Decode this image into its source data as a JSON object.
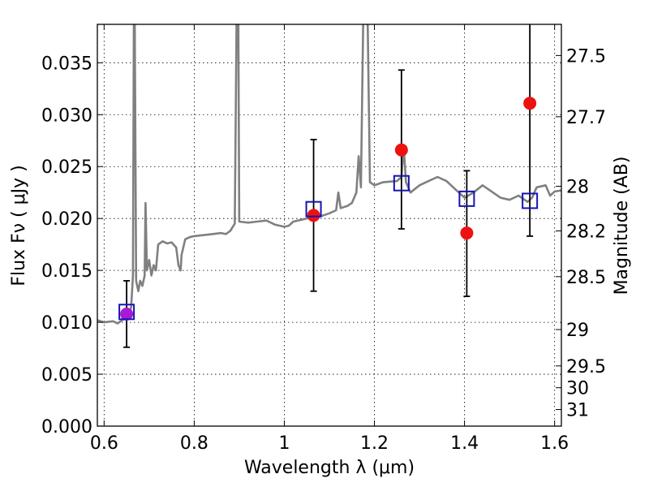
{
  "chart_data": {
    "type": "scatter",
    "title": "",
    "xlabel": "Wavelength  λ (μm)",
    "ylabel": "Flux  Fν  ( μJy )",
    "y2label": "Magnitude (AB)",
    "xlim": [
      0.585,
      1.615
    ],
    "ylim": [
      0.0,
      0.0387
    ],
    "grid": true,
    "x_ticks": [
      0.6,
      0.8,
      1.0,
      1.2,
      1.4,
      1.6
    ],
    "x_tick_labels": [
      "0.6",
      "0.8",
      "1",
      "1.2",
      "1.4",
      "1.6"
    ],
    "y_ticks": [
      0.0,
      0.005,
      0.01,
      0.015,
      0.02,
      0.025,
      0.03,
      0.035
    ],
    "y_tick_labels": [
      "0.000",
      "0.005",
      "0.010",
      "0.015",
      "0.020",
      "0.025",
      "0.030",
      "0.035"
    ],
    "mag_ticks": [
      {
        "label": "27.5",
        "flux": 0.0357
      },
      {
        "label": "27.7",
        "flux": 0.0298
      },
      {
        "label": "28",
        "flux": 0.0231
      },
      {
        "label": "28.2",
        "flux": 0.0188
      },
      {
        "label": "28.5",
        "flux": 0.0144
      },
      {
        "label": "29",
        "flux": 0.0093
      },
      {
        "label": "29.5",
        "flux": 0.0058
      },
      {
        "label": "30",
        "flux": 0.0037
      },
      {
        "label": "31",
        "flux": 0.0016
      }
    ],
    "series": [
      {
        "type": "line",
        "color": "#808080",
        "points": [
          [
            0.585,
            0.0102
          ],
          [
            0.6,
            0.01
          ],
          [
            0.62,
            0.0101
          ],
          [
            0.63,
            0.0099
          ],
          [
            0.64,
            0.0102
          ],
          [
            0.65,
            0.0104
          ],
          [
            0.655,
            0.0106
          ],
          [
            0.66,
            0.0115
          ],
          [
            0.664,
            0.0145
          ],
          [
            0.666,
            0.039
          ],
          [
            0.668,
            0.039
          ],
          [
            0.671,
            0.014
          ],
          [
            0.676,
            0.013
          ],
          [
            0.68,
            0.014
          ],
          [
            0.685,
            0.0135
          ],
          [
            0.69,
            0.0145
          ],
          [
            0.692,
            0.0215
          ],
          [
            0.695,
            0.015
          ],
          [
            0.7,
            0.016
          ],
          [
            0.705,
            0.0145
          ],
          [
            0.71,
            0.0155
          ],
          [
            0.715,
            0.015
          ],
          [
            0.72,
            0.0175
          ],
          [
            0.73,
            0.0178
          ],
          [
            0.74,
            0.0176
          ],
          [
            0.75,
            0.0177
          ],
          [
            0.76,
            0.0172
          ],
          [
            0.765,
            0.0155
          ],
          [
            0.77,
            0.015
          ],
          [
            0.772,
            0.0165
          ],
          [
            0.78,
            0.018
          ],
          [
            0.79,
            0.0182
          ],
          [
            0.8,
            0.0183
          ],
          [
            0.82,
            0.0184
          ],
          [
            0.84,
            0.0185
          ],
          [
            0.86,
            0.0186
          ],
          [
            0.87,
            0.0185
          ],
          [
            0.88,
            0.0188
          ],
          [
            0.89,
            0.0195
          ],
          [
            0.894,
            0.039
          ],
          [
            0.898,
            0.039
          ],
          [
            0.9,
            0.0197
          ],
          [
            0.92,
            0.0196
          ],
          [
            0.94,
            0.0197
          ],
          [
            0.96,
            0.0198
          ],
          [
            0.98,
            0.0194
          ],
          [
            1.0,
            0.0192
          ],
          [
            1.01,
            0.0193
          ],
          [
            1.02,
            0.0197
          ],
          [
            1.04,
            0.0199
          ],
          [
            1.06,
            0.0201
          ],
          [
            1.08,
            0.0202
          ],
          [
            1.1,
            0.0205
          ],
          [
            1.115,
            0.0208
          ],
          [
            1.12,
            0.0225
          ],
          [
            1.125,
            0.021
          ],
          [
            1.14,
            0.0212
          ],
          [
            1.15,
            0.0215
          ],
          [
            1.16,
            0.0225
          ],
          [
            1.165,
            0.026
          ],
          [
            1.17,
            0.023
          ],
          [
            1.175,
            0.039
          ],
          [
            1.185,
            0.039
          ],
          [
            1.19,
            0.0235
          ],
          [
            1.2,
            0.0232
          ],
          [
            1.22,
            0.0235
          ],
          [
            1.25,
            0.0236
          ],
          [
            1.26,
            0.024
          ],
          [
            1.265,
            0.027
          ],
          [
            1.27,
            0.0235
          ],
          [
            1.28,
            0.0225
          ],
          [
            1.3,
            0.0232
          ],
          [
            1.32,
            0.0236
          ],
          [
            1.34,
            0.024
          ],
          [
            1.36,
            0.0236
          ],
          [
            1.38,
            0.0228
          ],
          [
            1.4,
            0.022
          ],
          [
            1.42,
            0.0225
          ],
          [
            1.44,
            0.0232
          ],
          [
            1.46,
            0.0226
          ],
          [
            1.48,
            0.022
          ],
          [
            1.5,
            0.0218
          ],
          [
            1.52,
            0.0222
          ],
          [
            1.54,
            0.0216
          ],
          [
            1.55,
            0.022
          ],
          [
            1.56,
            0.023
          ],
          [
            1.58,
            0.0232
          ],
          [
            1.59,
            0.0222
          ],
          [
            1.6,
            0.0226
          ],
          [
            1.615,
            0.0227
          ]
        ]
      },
      {
        "type": "scatter",
        "marker": "square",
        "color": "#1414b4",
        "points": [
          [
            0.65,
            0.011
          ],
          [
            1.065,
            0.0209
          ],
          [
            1.26,
            0.0234
          ],
          [
            1.405,
            0.0219
          ],
          [
            1.545,
            0.0217
          ]
        ]
      },
      {
        "type": "errorbar",
        "marker": "circle",
        "color": "#ee1111",
        "points": [
          {
            "x": 0.65,
            "y": 0.0108,
            "ylow": 0.0076,
            "yhigh": 0.014,
            "color": "#aa1ad6"
          },
          {
            "x": 1.065,
            "y": 0.0203,
            "ylow": 0.013,
            "yhigh": 0.0276
          },
          {
            "x": 1.26,
            "y": 0.0266,
            "ylow": 0.019,
            "yhigh": 0.0343
          },
          {
            "x": 1.405,
            "y": 0.0186,
            "ylow": 0.0125,
            "yhigh": 0.0246
          },
          {
            "x": 1.545,
            "y": 0.0311,
            "ylow": 0.0183,
            "yhigh": 0.04
          }
        ]
      }
    ]
  }
}
